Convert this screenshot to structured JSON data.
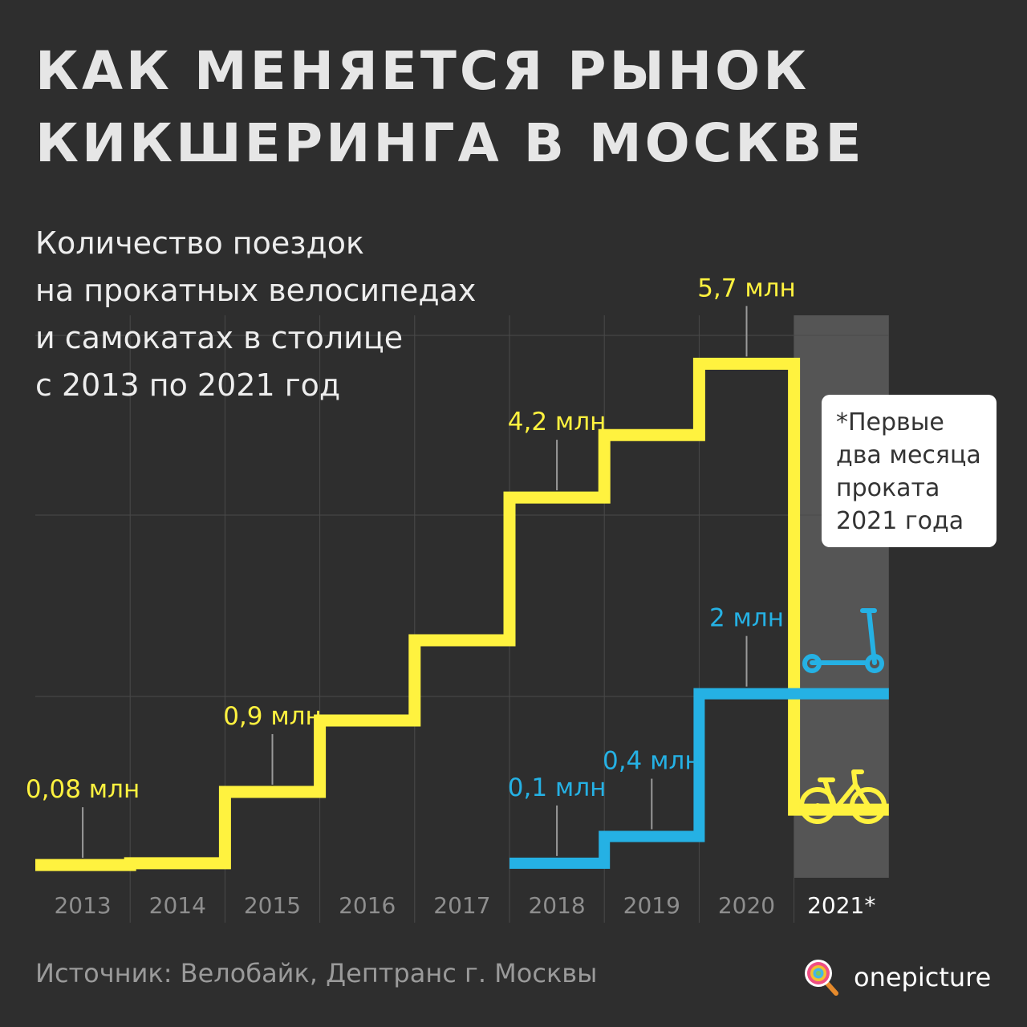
{
  "header": {
    "title_line1": "КАК МЕНЯЕТСЯ РЫНОК",
    "title_line2": "КИКШЕРИНГА В МОСКВЕ",
    "subtitle_lines": [
      "Количество поездок",
      "на прокатных велосипедах",
      "и самокатах в столице",
      "с 2013 по 2021 год"
    ]
  },
  "note": [
    "*Первые",
    "два месяца",
    "проката",
    "2021 года"
  ],
  "footer": {
    "source": "Источник: Велобайк, Дептранс г. Москвы",
    "brand": "onepicture"
  },
  "colors": {
    "background": "#2e2e2e",
    "bikes": "#fff23f",
    "scooters": "#25b1e4",
    "grid": "#4a4a4a",
    "highlight_band": "#555555"
  },
  "icons": [
    "scooter-icon",
    "bicycle-icon",
    "lollipop-logo-icon"
  ],
  "chart_data": {
    "type": "line",
    "step": true,
    "categories": [
      "2013",
      "2014",
      "2015",
      "2016",
      "2017",
      "2018",
      "2019",
      "2020",
      "2021*"
    ],
    "highlighted_category": "2021*",
    "ylim": [
      0,
      6
    ],
    "grid": true,
    "series": [
      {
        "icon": "bicycle-icon",
        "color": "#fff23f",
        "values": [
          0.08,
          0.1,
          0.9,
          1.7,
          2.6,
          4.2,
          4.9,
          5.7,
          0.7
        ],
        "labels": [
          {
            "index": 0,
            "text": "0,08 млн"
          },
          {
            "index": 2,
            "text": "0,9 млн"
          },
          {
            "index": 5,
            "text": "4,2 млн"
          },
          {
            "index": 7,
            "text": "5,7 млн"
          }
        ]
      },
      {
        "icon": "scooter-icon",
        "color": "#25b1e4",
        "values": [
          null,
          null,
          null,
          null,
          null,
          0.1,
          0.4,
          2.0,
          2.0
        ],
        "labels": [
          {
            "index": 5,
            "text": "0,1 млн"
          },
          {
            "index": 6,
            "text": "0,4 млн"
          },
          {
            "index": 7,
            "text": "2 млн"
          }
        ]
      }
    ]
  }
}
